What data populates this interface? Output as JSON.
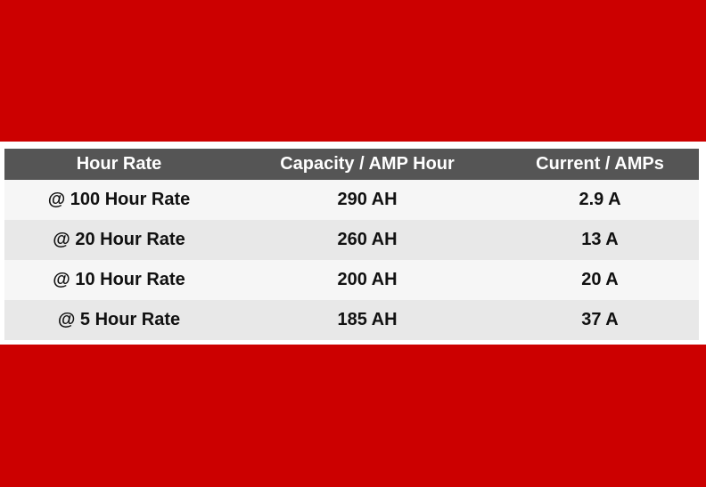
{
  "colors": {
    "band": "#cc0000",
    "header_bg": "#555555",
    "header_text": "#ffffff",
    "row_light": "#f6f6f6",
    "row_dark": "#e8e8e8"
  },
  "table": {
    "headers": [
      "Hour Rate",
      "Capacity / AMP Hour",
      "Current / AMPs"
    ],
    "rows": [
      [
        "@ 100 Hour Rate",
        "290 AH",
        "2.9 A"
      ],
      [
        "@ 20 Hour Rate",
        "260 AH",
        "13 A"
      ],
      [
        "@ 10 Hour Rate",
        "200 AH",
        "20 A"
      ],
      [
        "@ 5 Hour Rate",
        "185 AH",
        "37 A"
      ]
    ]
  }
}
